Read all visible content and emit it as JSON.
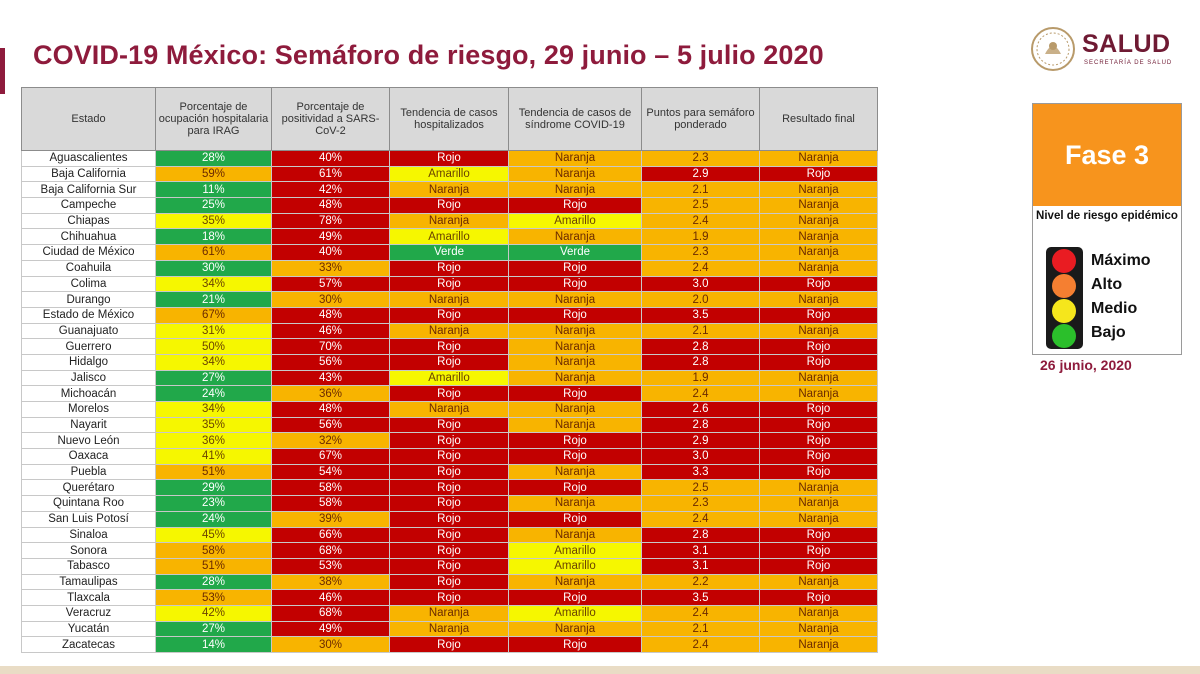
{
  "title": "COVID-19 México: Semáforo de riesgo, 29 junio – 5 julio 2020",
  "logo": {
    "name": "SALUD",
    "subtitle": "SECRETARÍA DE SALUD"
  },
  "headers": [
    "Estado",
    "Porcentaje de ocupación hospitalaria para IRAG",
    "Porcentaje de positividad a SARS-CoV-2",
    "Tendencia de casos hospitalizados",
    "Tendencia de casos de síndrome COVID-19",
    "Puntos para semáforo ponderado",
    "Resultado final"
  ],
  "rows": [
    [
      "Aguascalientes",
      "28%",
      "40%",
      "Rojo",
      "Naranja",
      "2.3",
      "Naranja"
    ],
    [
      "Baja California",
      "59%",
      "61%",
      "Amarillo",
      "Naranja",
      "2.9",
      "Rojo"
    ],
    [
      "Baja California Sur",
      "11%",
      "42%",
      "Naranja",
      "Naranja",
      "2.1",
      "Naranja"
    ],
    [
      "Campeche",
      "25%",
      "48%",
      "Rojo",
      "Rojo",
      "2.5",
      "Naranja"
    ],
    [
      "Chiapas",
      "35%",
      "78%",
      "Naranja",
      "Amarillo",
      "2.4",
      "Naranja"
    ],
    [
      "Chihuahua",
      "18%",
      "49%",
      "Amarillo",
      "Naranja",
      "1.9",
      "Naranja"
    ],
    [
      "Ciudad de México",
      "61%",
      "40%",
      "Verde",
      "Verde",
      "2.3",
      "Naranja"
    ],
    [
      "Coahuila",
      "30%",
      "33%",
      "Rojo",
      "Rojo",
      "2.4",
      "Naranja"
    ],
    [
      "Colima",
      "34%",
      "57%",
      "Rojo",
      "Rojo",
      "3.0",
      "Rojo"
    ],
    [
      "Durango",
      "21%",
      "30%",
      "Naranja",
      "Naranja",
      "2.0",
      "Naranja"
    ],
    [
      "Estado de México",
      "67%",
      "48%",
      "Rojo",
      "Rojo",
      "3.5",
      "Rojo"
    ],
    [
      "Guanajuato",
      "31%",
      "46%",
      "Naranja",
      "Naranja",
      "2.1",
      "Naranja"
    ],
    [
      "Guerrero",
      "50%",
      "70%",
      "Rojo",
      "Naranja",
      "2.8",
      "Rojo"
    ],
    [
      "Hidalgo",
      "34%",
      "56%",
      "Rojo",
      "Naranja",
      "2.8",
      "Rojo"
    ],
    [
      "Jalisco",
      "27%",
      "43%",
      "Amarillo",
      "Naranja",
      "1.9",
      "Naranja"
    ],
    [
      "Michoacán",
      "24%",
      "36%",
      "Rojo",
      "Rojo",
      "2.4",
      "Naranja"
    ],
    [
      "Morelos",
      "34%",
      "48%",
      "Naranja",
      "Naranja",
      "2.6",
      "Rojo"
    ],
    [
      "Nayarit",
      "35%",
      "56%",
      "Rojo",
      "Naranja",
      "2.8",
      "Rojo"
    ],
    [
      "Nuevo León",
      "36%",
      "32%",
      "Rojo",
      "Rojo",
      "2.9",
      "Rojo"
    ],
    [
      "Oaxaca",
      "41%",
      "67%",
      "Rojo",
      "Rojo",
      "3.0",
      "Rojo"
    ],
    [
      "Puebla",
      "51%",
      "54%",
      "Rojo",
      "Naranja",
      "3.3",
      "Rojo"
    ],
    [
      "Querétaro",
      "29%",
      "58%",
      "Rojo",
      "Rojo",
      "2.5",
      "Naranja"
    ],
    [
      "Quintana Roo",
      "23%",
      "58%",
      "Rojo",
      "Naranja",
      "2.3",
      "Naranja"
    ],
    [
      "San Luis Potosí",
      "24%",
      "39%",
      "Rojo",
      "Rojo",
      "2.4",
      "Naranja"
    ],
    [
      "Sinaloa",
      "45%",
      "66%",
      "Rojo",
      "Naranja",
      "2.8",
      "Rojo"
    ],
    [
      "Sonora",
      "58%",
      "68%",
      "Rojo",
      "Amarillo",
      "3.1",
      "Rojo"
    ],
    [
      "Tabasco",
      "51%",
      "53%",
      "Rojo",
      "Amarillo",
      "3.1",
      "Rojo"
    ],
    [
      "Tamaulipas",
      "28%",
      "38%",
      "Rojo",
      "Naranja",
      "2.2",
      "Naranja"
    ],
    [
      "Tlaxcala",
      "53%",
      "46%",
      "Rojo",
      "Rojo",
      "3.5",
      "Rojo"
    ],
    [
      "Veracruz",
      "42%",
      "68%",
      "Naranja",
      "Amarillo",
      "2.4",
      "Naranja"
    ],
    [
      "Yucatán",
      "27%",
      "49%",
      "Naranja",
      "Naranja",
      "2.1",
      "Naranja"
    ],
    [
      "Zacatecas",
      "14%",
      "30%",
      "Rojo",
      "Rojo",
      "2.4",
      "Naranja"
    ]
  ],
  "cell_colors": [
    [
      "verde",
      "rojo",
      "rojo",
      "naranja",
      "naranja",
      "naranja"
    ],
    [
      "naranja",
      "rojo",
      "amarillo",
      "naranja",
      "rojo",
      "rojo"
    ],
    [
      "verde",
      "rojo",
      "naranja",
      "naranja",
      "naranja",
      "naranja"
    ],
    [
      "verde",
      "rojo",
      "rojo",
      "rojo",
      "naranja",
      "naranja"
    ],
    [
      "amarillo",
      "rojo",
      "naranja",
      "amarillo",
      "naranja",
      "naranja"
    ],
    [
      "verde",
      "rojo",
      "amarillo",
      "naranja",
      "naranja",
      "naranja"
    ],
    [
      "naranja",
      "rojo",
      "verde",
      "verde",
      "naranja",
      "naranja"
    ],
    [
      "verde",
      "naranja",
      "rojo",
      "rojo",
      "naranja",
      "naranja"
    ],
    [
      "amarillo",
      "rojo",
      "rojo",
      "rojo",
      "rojo",
      "rojo"
    ],
    [
      "verde",
      "naranja",
      "naranja",
      "naranja",
      "naranja",
      "naranja"
    ],
    [
      "naranja",
      "rojo",
      "rojo",
      "rojo",
      "rojo",
      "rojo"
    ],
    [
      "amarillo",
      "rojo",
      "naranja",
      "naranja",
      "naranja",
      "naranja"
    ],
    [
      "amarillo",
      "rojo",
      "rojo",
      "naranja",
      "rojo",
      "rojo"
    ],
    [
      "amarillo",
      "rojo",
      "rojo",
      "naranja",
      "rojo",
      "rojo"
    ],
    [
      "verde",
      "rojo",
      "amarillo",
      "naranja",
      "naranja",
      "naranja"
    ],
    [
      "verde",
      "naranja",
      "rojo",
      "rojo",
      "naranja",
      "naranja"
    ],
    [
      "amarillo",
      "rojo",
      "naranja",
      "naranja",
      "rojo",
      "rojo"
    ],
    [
      "amarillo",
      "rojo",
      "rojo",
      "naranja",
      "rojo",
      "rojo"
    ],
    [
      "amarillo",
      "naranja",
      "rojo",
      "rojo",
      "rojo",
      "rojo"
    ],
    [
      "amarillo",
      "rojo",
      "rojo",
      "rojo",
      "rojo",
      "rojo"
    ],
    [
      "naranja",
      "rojo",
      "rojo",
      "naranja",
      "rojo",
      "rojo"
    ],
    [
      "verde",
      "rojo",
      "rojo",
      "rojo",
      "naranja",
      "naranja"
    ],
    [
      "verde",
      "rojo",
      "rojo",
      "naranja",
      "naranja",
      "naranja"
    ],
    [
      "verde",
      "naranja",
      "rojo",
      "rojo",
      "naranja",
      "naranja"
    ],
    [
      "amarillo",
      "rojo",
      "rojo",
      "naranja",
      "rojo",
      "rojo"
    ],
    [
      "naranja",
      "rojo",
      "rojo",
      "amarillo",
      "rojo",
      "rojo"
    ],
    [
      "naranja",
      "rojo",
      "rojo",
      "amarillo",
      "rojo",
      "rojo"
    ],
    [
      "verde",
      "naranja",
      "rojo",
      "naranja",
      "naranja",
      "naranja"
    ],
    [
      "naranja",
      "rojo",
      "rojo",
      "rojo",
      "rojo",
      "rojo"
    ],
    [
      "amarillo",
      "rojo",
      "naranja",
      "amarillo",
      "naranja",
      "naranja"
    ],
    [
      "verde",
      "rojo",
      "naranja",
      "naranja",
      "naranja",
      "naranja"
    ],
    [
      "verde",
      "naranja",
      "rojo",
      "rojo",
      "naranja",
      "naranja"
    ]
  ],
  "legend": {
    "fase": "Fase 3",
    "nivel": "Nivel de riesgo epidémico",
    "levels": [
      "Máximo",
      "Alto",
      "Medio",
      "Bajo"
    ],
    "level_colors": [
      "#e91c22",
      "#f57f31",
      "#f5e61c",
      "#2bbf2b"
    ],
    "fecha": "26 junio, 2020"
  },
  "colors": {
    "verde": "#21a84a",
    "amarillo": "#f6f700",
    "naranja": "#f8b400",
    "rojo": "#c20000",
    "brand": "#8e1b3c",
    "fase": "#f7941d"
  }
}
